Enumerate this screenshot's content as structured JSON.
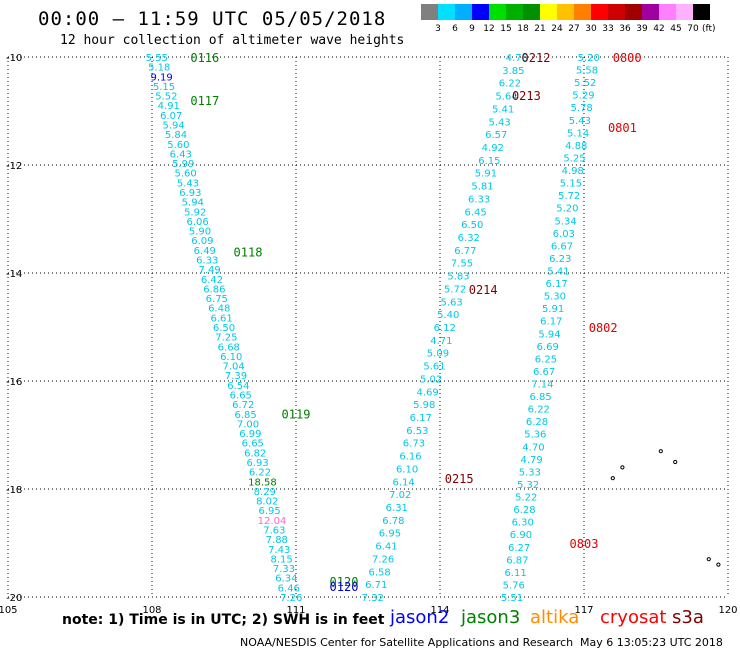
{
  "header": {
    "title": "00:00 — 11:59 UTC 05/05/2018",
    "subtitle": "12 hour collection of altimeter wave heights"
  },
  "color_scale": {
    "colors": [
      "#808080",
      "#00e0ff",
      "#00b0ff",
      "#0000ff",
      "#00e000",
      "#00b000",
      "#009000",
      "#ffff00",
      "#ffc000",
      "#ff8000",
      "#ff0000",
      "#d00000",
      "#a00000",
      "#a000a0",
      "#ff80ff",
      "#ffb0ff",
      "#000000"
    ],
    "ticks": [
      "3",
      "6",
      "9",
      "12",
      "15",
      "18",
      "21",
      "24",
      "27",
      "30",
      "33",
      "36",
      "39",
      "42",
      "45",
      "70"
    ],
    "unit": "(ft)"
  },
  "axes": {
    "x_ticks": [
      "105",
      "108",
      "111",
      "114",
      "117",
      "120"
    ],
    "y_ticks": [
      "-10",
      "-12",
      "-14",
      "-16",
      "-18",
      "-20"
    ],
    "lon_range": [
      105,
      120
    ],
    "lat_range": [
      -20,
      -10
    ]
  },
  "tracks": [
    {
      "satellite": "jason3",
      "color": "#00c8e6",
      "values": [
        "5.55",
        "5.18",
        "9.19",
        "5.15",
        "5.52",
        "4.91",
        "6.07",
        "5.94",
        "5.84",
        "5.60",
        "6.43",
        "5.99",
        "5.60",
        "5.43",
        "6.93",
        "5.94",
        "5.92",
        "6.06",
        "5.90",
        "6.09",
        "6.49",
        "6.33",
        "7.49",
        "6.42",
        "6.86",
        "6.75",
        "6.48",
        "6.61",
        "6.50",
        "7.25",
        "6.68",
        "6.10",
        "7.04",
        "7.39",
        "6.54",
        "6.65",
        "6.72",
        "6.85",
        "7.00",
        "6.99",
        "6.65",
        "6.82",
        "6.93",
        "6.22",
        "18.58",
        "8.29",
        "8.02",
        "6.95",
        "12.04",
        "7.63",
        "7.88",
        "7.43",
        "8.15",
        "7.33",
        "6.34",
        "6.46",
        "7.26"
      ],
      "highlight": {
        "2": "#0000ff",
        "44": "#008000",
        "48": "#ff66cc"
      },
      "start": [
        108.1,
        -10
      ],
      "end": [
        110.9,
        -20
      ]
    },
    {
      "satellite": "altika-a",
      "color": "#00c8e6",
      "values": [
        "4.76",
        "3.85",
        "6.22",
        "5.64",
        "5.41",
        "5.43",
        "6.57",
        "4.92",
        "6.15",
        "5.91",
        "5.81",
        "6.33",
        "6.45",
        "6.50",
        "6.32",
        "6.77",
        "7.55",
        "5.83",
        "5.72",
        "5.63",
        "5.40",
        "6.12",
        "4.71",
        "5.09",
        "5.61",
        "5.02",
        "4.69",
        "5.98",
        "6.17",
        "6.53",
        "6.73",
        "6.16",
        "6.10",
        "6.14",
        "7.02",
        "6.31",
        "6.78",
        "6.95",
        "6.41",
        "7.26",
        "6.58",
        "6.71",
        "7.32"
      ],
      "start": [
        115.6,
        -10
      ],
      "end": [
        112.6,
        -20
      ]
    },
    {
      "satellite": "cryosat",
      "color": "#00c8e6",
      "values": [
        "5.20",
        "5.58",
        "5.52",
        "5.29",
        "5.78",
        "5.43",
        "5.14",
        "4.88",
        "5.25",
        "4.98",
        "5.15",
        "5.72",
        "5.20",
        "5.34",
        "6.03",
        "6.67",
        "6.23",
        "5.41",
        "6.17",
        "5.30",
        "5.91",
        "6.17",
        "5.94",
        "6.69",
        "6.25",
        "6.67",
        "7.14",
        "6.85",
        "6.22",
        "6.28",
        "5.36",
        "4.70",
        "4.79",
        "5.33",
        "5.32",
        "5.22",
        "6.28",
        "6.30",
        "6.90",
        "6.27",
        "6.87",
        "6.11",
        "5.76",
        "5.51"
      ],
      "start": [
        117.1,
        -10
      ],
      "end": [
        115.5,
        -20
      ]
    }
  ],
  "time_labels": [
    {
      "text": "0116",
      "color": "#008000",
      "lon": 109.1,
      "lat": -10
    },
    {
      "text": "0117",
      "color": "#008000",
      "lon": 109.1,
      "lat": -10.8
    },
    {
      "text": "0118",
      "color": "#008000",
      "lon": 110.0,
      "lat": -13.6
    },
    {
      "text": "0119",
      "color": "#008000",
      "lon": 111.0,
      "lat": -16.6
    },
    {
      "text": "0120",
      "color": "#008000",
      "lon": 112.0,
      "lat": -19.7
    },
    {
      "text": "0120",
      "color": "#0000c0",
      "lon": 112.0,
      "lat": -19.8
    },
    {
      "text": "0212",
      "color": "#800000",
      "lon": 116.0,
      "lat": -10
    },
    {
      "text": "0213",
      "color": "#800000",
      "lon": 115.8,
      "lat": -10.7
    },
    {
      "text": "0214",
      "color": "#800000",
      "lon": 114.9,
      "lat": -14.3
    },
    {
      "text": "0215",
      "color": "#800000",
      "lon": 114.4,
      "lat": -17.8
    },
    {
      "text": "0800",
      "color": "#e00000",
      "lon": 117.9,
      "lat": -10
    },
    {
      "text": "0801",
      "color": "#e00000",
      "lon": 117.8,
      "lat": -11.3
    },
    {
      "text": "0802",
      "color": "#e00000",
      "lon": 117.4,
      "lat": -15.0
    },
    {
      "text": "0803",
      "color": "#e00000",
      "lon": 117.0,
      "lat": -19.0
    }
  ],
  "footer": {
    "note": "note: 1) Time is in UTC; 2) SWH is in feet",
    "legend": [
      {
        "name": "jason2",
        "color": "#0000ff"
      },
      {
        "name": "jason3",
        "color": "#008000"
      },
      {
        "name": "altika",
        "color": "#ff8c00"
      },
      {
        "name": "cryosat",
        "color": "#ff0000"
      },
      {
        "name": "s3a",
        "color": "#800000"
      }
    ],
    "credit": "NOAA/NESDIS Center for Satellite Applications and Research",
    "timestamp": "May  6 13:05:23 UTC 2018"
  }
}
